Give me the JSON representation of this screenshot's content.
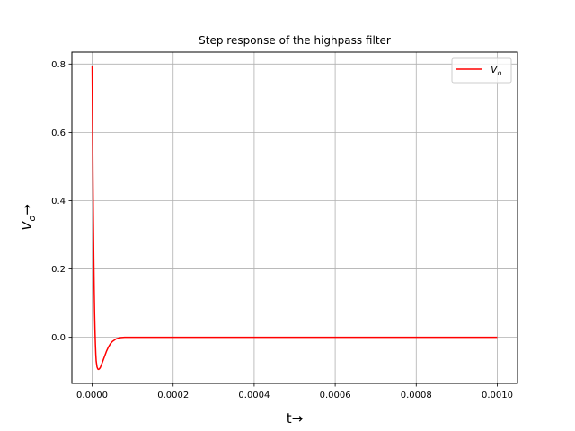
{
  "chart_data": {
    "type": "line",
    "title": "Step response of the highpass filter",
    "xlabel": "t→",
    "ylabel_main": "V",
    "ylabel_sub": "o",
    "ylabel_arrow": "→",
    "xlim": [
      -5e-05,
      0.00105
    ],
    "ylim": [
      -0.135,
      0.835
    ],
    "x_ticks": [
      0.0,
      0.0002,
      0.0004,
      0.0006,
      0.0008,
      0.001
    ],
    "x_tick_labels": [
      "0.0000",
      "0.0002",
      "0.0004",
      "0.0006",
      "0.0008",
      "0.0010"
    ],
    "y_ticks": [
      0.0,
      0.2,
      0.4,
      0.6,
      0.8
    ],
    "y_tick_labels": [
      "0.0",
      "0.2",
      "0.4",
      "0.6",
      "0.8"
    ],
    "grid": true,
    "legend": {
      "position": "top-right",
      "label_main": "V",
      "label_sub": "o"
    },
    "series": [
      {
        "color": "#ff0000",
        "x": [
          0,
          1e-06,
          2e-06,
          3e-06,
          4e-06,
          5e-06,
          6e-06,
          7e-06,
          8e-06,
          9e-06,
          1e-05,
          1.2e-05,
          1.4e-05,
          1.6e-05,
          1.8e-05,
          2e-05,
          2.2e-05,
          2.5e-05,
          3e-05,
          3.5e-05,
          4e-05,
          4.5e-05,
          5e-05,
          6e-05,
          7e-05,
          8e-05,
          9e-05,
          0.0001,
          0.00012,
          0.00015,
          0.0002,
          0.0003,
          0.0004,
          0.0005,
          0.0006,
          0.0007,
          0.0008,
          0.0009,
          0.001
        ],
        "y": [
          0.795,
          0.63,
          0.47,
          0.34,
          0.23,
          0.14,
          0.07,
          0.02,
          -0.02,
          -0.05,
          -0.07,
          -0.087,
          -0.093,
          -0.094,
          -0.092,
          -0.089,
          -0.083,
          -0.074,
          -0.058,
          -0.042,
          -0.029,
          -0.019,
          -0.012,
          -0.004,
          -0.001,
          0.0,
          0.0,
          0.0,
          0.0,
          0.0,
          0.0,
          0.0,
          0.0,
          0.0,
          0.0,
          0.0,
          0.0,
          0.0,
          0.0
        ]
      }
    ]
  }
}
